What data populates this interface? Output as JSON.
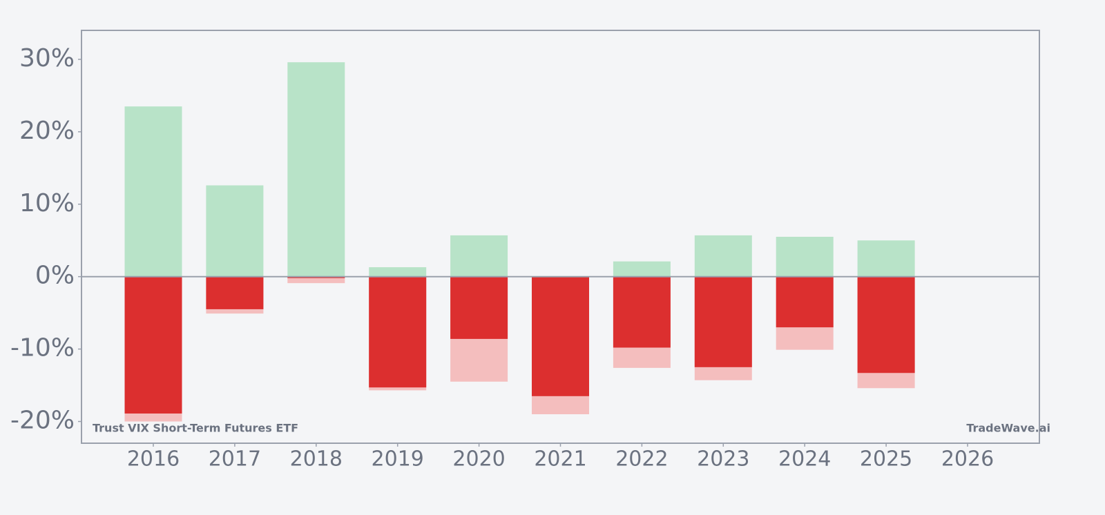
{
  "chart_data": {
    "type": "bar",
    "categories": [
      "2016",
      "2017",
      "2018",
      "2019",
      "2020",
      "2021",
      "2022",
      "2023",
      "2024",
      "2025",
      "2026"
    ],
    "series": [
      {
        "color": "#b8e3c8",
        "values": [
          23.5,
          12.6,
          29.6,
          1.3,
          5.7,
          0,
          2.1,
          5.7,
          5.5,
          5.0,
          null
        ]
      },
      {
        "color": "#f4bebe",
        "values": [
          -20.0,
          -5.1,
          -0.9,
          -15.7,
          -14.5,
          -19.0,
          -12.6,
          -14.3,
          -10.1,
          -15.4,
          null
        ]
      },
      {
        "color": "#dc2f2f",
        "values": [
          -18.9,
          -4.5,
          -0.2,
          -15.3,
          -8.6,
          -16.5,
          -9.8,
          -12.5,
          -7.0,
          -13.3,
          null
        ]
      }
    ],
    "ylim": [
      -23,
      34
    ],
    "yticks": [
      {
        "value": -20,
        "label": "-20%"
      },
      {
        "value": -10,
        "label": "-10%"
      },
      {
        "value": 0,
        "label": "0%"
      },
      {
        "value": 10,
        "label": "10%"
      },
      {
        "value": 20,
        "label": "20%"
      },
      {
        "value": 30,
        "label": "30%"
      }
    ],
    "grid": false,
    "annotations": [
      "Trust VIX Short-Term Futures ETF",
      "TradeWave.ai"
    ]
  }
}
